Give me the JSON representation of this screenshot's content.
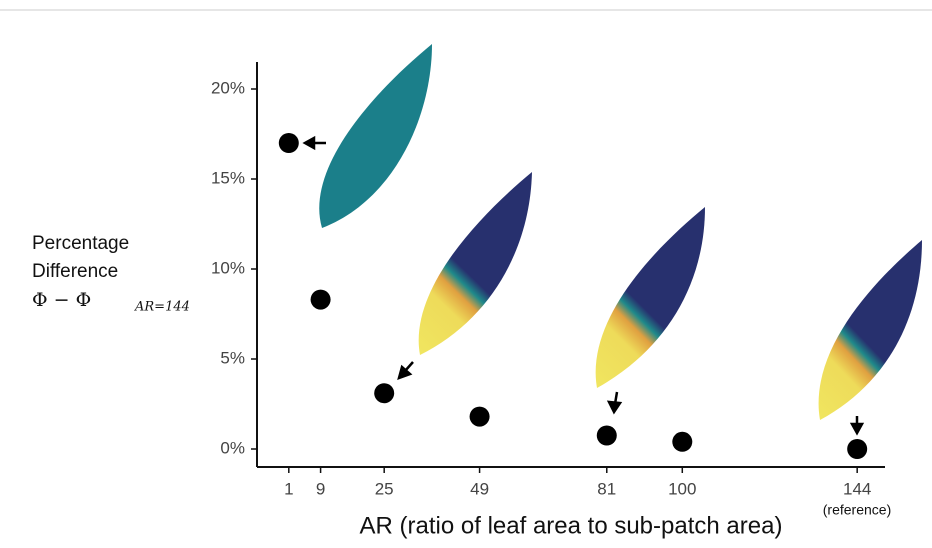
{
  "chart_data": {
    "type": "scatter",
    "x_label": "AR (ratio of leaf area to sub-patch area)",
    "y_label": [
      "Percentage",
      "Difference"
    ],
    "y_formula": {
      "main": "Φ − Φ",
      "subscript": "AR=144"
    },
    "annotation": "(reference)",
    "x": [
      1,
      9,
      25,
      49,
      81,
      100,
      144
    ],
    "values": [
      17,
      8.3,
      3.1,
      1.8,
      0.75,
      0.4,
      0
    ],
    "color": "#000000",
    "xlim": [
      -7,
      151
    ],
    "xticks": [
      1,
      9,
      25,
      49,
      81,
      100,
      144
    ],
    "ylim": [
      -1,
      21.5
    ],
    "yticks": [
      {
        "value": 0,
        "label": "0%"
      },
      {
        "value": 5,
        "label": "5%"
      },
      {
        "value": 10,
        "label": "10%"
      },
      {
        "value": 15,
        "label": "15%"
      },
      {
        "value": 20,
        "label": "20%"
      }
    ],
    "grid": false
  }
}
